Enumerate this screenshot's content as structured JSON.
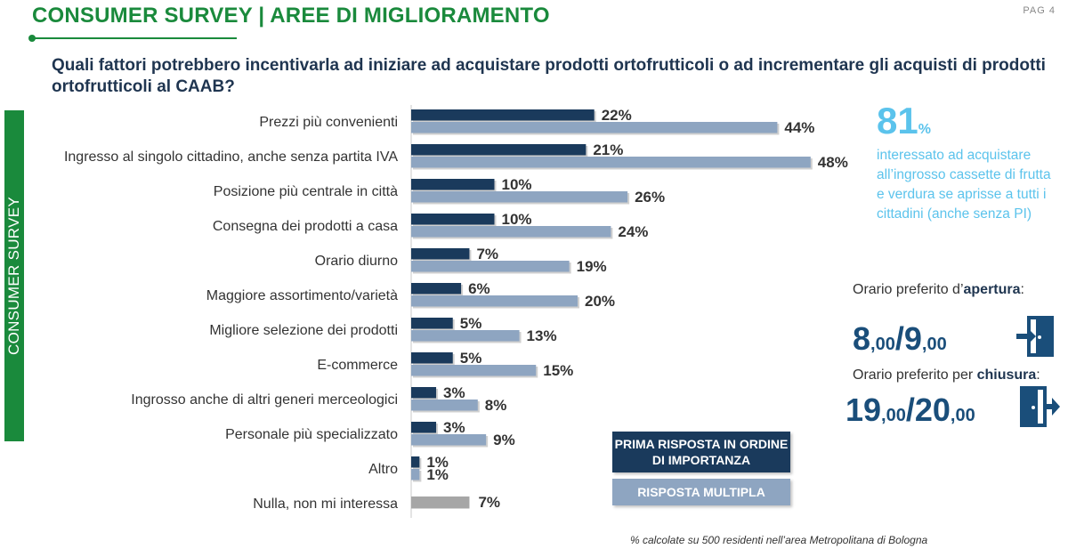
{
  "header": {
    "title": "CONSUMER SURVEY | AREE DI MIGLIORAMENTO",
    "page": "PAG 4"
  },
  "question": "Quali fattori potrebbero incentivarla ad iniziare ad acquistare prodotti ortofrutticoli o ad incrementare gli acquisti di prodotti ortofrutticoli al CAAB?",
  "side_band": "CONSUMER SURVEY",
  "chart_data": {
    "type": "bar",
    "orientation": "horizontal",
    "categories": [
      "Prezzi più convenienti",
      "Ingresso al singolo cittadino, anche senza partita IVA",
      "Posizione più centrale in città",
      "Consegna dei prodotti a casa",
      "Orario diurno",
      "Maggiore assortimento/varietà",
      "Migliore selezione dei prodotti",
      "E-commerce",
      "Ingrosso anche di altri generi merceologici",
      "Personale più specializzato",
      "Altro",
      "Nulla, non mi interessa"
    ],
    "series": [
      {
        "name": "PRIMA RISPOSTA IN ORDINE DI IMPORTANZA",
        "color": "#1a3a5c",
        "values": [
          22,
          21,
          10,
          10,
          7,
          6,
          5,
          5,
          3,
          3,
          1,
          null
        ],
        "labels": [
          "22%",
          "21%",
          "10%",
          "10%",
          "7%",
          "6%",
          "5%",
          "5%",
          "3%",
          "3%",
          "1%",
          ""
        ]
      },
      {
        "name": "RISPOSTA MULTIPLA",
        "color": "#8ea5c1",
        "values": [
          44,
          48,
          26,
          24,
          19,
          20,
          13,
          15,
          8,
          9,
          1,
          null
        ],
        "labels": [
          "44%",
          "48%",
          "26%",
          "24%",
          "19%",
          "20%",
          "13%",
          "15%",
          "8%",
          "9%",
          "1%",
          ""
        ]
      }
    ],
    "single_value": {
      "category": "Nulla, non mi interessa",
      "value": 7,
      "label": "7%",
      "color": "#a6a6a6"
    },
    "legend_placement": "bottom-right",
    "grid": false
  },
  "stat": {
    "value": "81",
    "unit": "%",
    "description": "interessato ad acquistare all’ingrosso cassette di frutta e verdura se aprisse a tutti i cittadini (anche senza PI)"
  },
  "opening": {
    "label_prefix": "Orario preferito d’",
    "label_bold": "apertura",
    "label_suffix": ":",
    "hour1": "8",
    "min1": ",00",
    "sep": "/",
    "hour2": "9",
    "min2": ",00",
    "icon": "door-enter-icon"
  },
  "closing": {
    "label_prefix": "Orario preferito per ",
    "label_bold": "chiusura",
    "label_suffix": ":",
    "hour1": "19",
    "min1": ",00",
    "sep": "/",
    "hour2": "20",
    "min2": ",00",
    "icon": "door-exit-icon"
  },
  "legend": {
    "first": "PRIMA RISPOSTA IN ORDINE DI IMPORTANZA",
    "multi": "RISPOSTA MULTIPLA"
  },
  "footnote": "% calcolate su 500 residenti nell’area Metropolitana di Bologna",
  "colors": {
    "brand_green": "#1a8a3c",
    "dark_blue": "#1a3a5c",
    "light_blue": "#8ea5c1",
    "accent_cyan": "#5bc3ec",
    "grey": "#a6a6a6"
  }
}
